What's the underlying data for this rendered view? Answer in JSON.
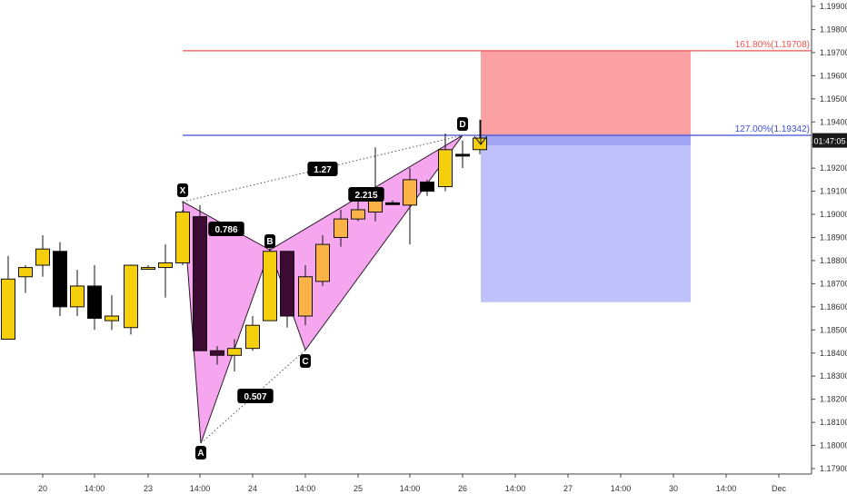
{
  "chart_data": {
    "type": "candlestick",
    "title": "",
    "xlabel": "",
    "ylabel": "",
    "ylim": [
      1.1787,
      1.1994
    ],
    "y_ticks": [
      "1.17900",
      "1.18000",
      "1.18100",
      "1.18200",
      "1.18300",
      "1.18400",
      "1.18500",
      "1.18600",
      "1.18700",
      "1.18800",
      "1.18900",
      "1.19000",
      "1.19100",
      "1.19200",
      "1.19300",
      "1.19400",
      "1.19500",
      "1.19600",
      "1.19700",
      "1.19800",
      "1.19900"
    ],
    "x_ticks": [
      "20",
      "14:00",
      "23",
      "14:00",
      "24",
      "14:00",
      "25",
      "14:00",
      "26",
      "14:00",
      "27",
      "14:00",
      "30",
      "14:00",
      "Dec"
    ],
    "price_label": "01:47:05",
    "price_value": 1.1932,
    "grid": false,
    "colors": {
      "bull": "#f5ce0c",
      "bear": "#000000",
      "bull_orange": "#fbb347",
      "bear_purple": "#3c0a32",
      "pattern_fill": "#f5a6ee",
      "fib_1618": "#ef5350",
      "fib_127": "#3f4fd8",
      "stop_zone": "#fba1a3",
      "target_zone": "#bfc1fb"
    },
    "candles": [
      {
        "o": 1.1846,
        "h": 1.1882,
        "l": 1.1846,
        "c": 1.1872
      },
      {
        "o": 1.1873,
        "h": 1.1878,
        "l": 1.1866,
        "c": 1.1877
      },
      {
        "o": 1.1878,
        "h": 1.1891,
        "l": 1.1873,
        "c": 1.1885
      },
      {
        "o": 1.1884,
        "h": 1.1888,
        "l": 1.1856,
        "c": 1.186
      },
      {
        "o": 1.186,
        "h": 1.1876,
        "l": 1.1856,
        "c": 1.1869
      },
      {
        "o": 1.1869,
        "h": 1.1878,
        "l": 1.185,
        "c": 1.1855
      },
      {
        "o": 1.1854,
        "h": 1.1865,
        "l": 1.185,
        "c": 1.1856
      },
      {
        "o": 1.1851,
        "h": 1.1878,
        "l": 1.1848,
        "c": 1.1878
      },
      {
        "o": 1.1877,
        "h": 1.1878,
        "l": 1.1876,
        "c": 1.1877
      },
      {
        "o": 1.1877,
        "h": 1.1887,
        "l": 1.1864,
        "c": 1.1879
      },
      {
        "o": 1.1879,
        "h": 1.1902,
        "l": 1.1878,
        "c": 1.1901
      },
      {
        "o": 1.1899,
        "h": 1.1904,
        "l": 1.1841,
        "c": 1.1841
      },
      {
        "o": 1.1841,
        "h": 1.1843,
        "l": 1.1835,
        "c": 1.1839
      },
      {
        "o": 1.1839,
        "h": 1.1846,
        "l": 1.1832,
        "c": 1.1842
      },
      {
        "o": 1.1842,
        "h": 1.1856,
        "l": 1.1841,
        "c": 1.1852
      },
      {
        "o": 1.1854,
        "h": 1.1886,
        "l": 1.1854,
        "c": 1.1884
      },
      {
        "o": 1.1884,
        "h": 1.1884,
        "l": 1.1851,
        "c": 1.1856
      },
      {
        "o": 1.1856,
        "h": 1.1878,
        "l": 1.1852,
        "c": 1.1873
      },
      {
        "o": 1.1871,
        "h": 1.1891,
        "l": 1.1869,
        "c": 1.1887
      },
      {
        "o": 1.189,
        "h": 1.1902,
        "l": 1.1886,
        "c": 1.1898
      },
      {
        "o": 1.1898,
        "h": 1.191,
        "l": 1.1897,
        "c": 1.1902
      },
      {
        "o": 1.1901,
        "h": 1.1929,
        "l": 1.1897,
        "c": 1.1907
      },
      {
        "o": 1.1905,
        "h": 1.1906,
        "l": 1.1904,
        "c": 1.1905
      },
      {
        "o": 1.1904,
        "h": 1.192,
        "l": 1.1887,
        "c": 1.1915
      },
      {
        "o": 1.191,
        "h": 1.1915,
        "l": 1.1908,
        "c": 1.1914
      },
      {
        "o": 1.1912,
        "h": 1.1935,
        "l": 1.191,
        "c": 1.1928
      },
      {
        "o": 1.1926,
        "h": 1.1932,
        "l": 1.192,
        "c": 1.1926
      },
      {
        "o": 1.1928,
        "h": 1.1941,
        "l": 1.1926,
        "c": 1.1933
      }
    ],
    "pattern": {
      "name": "",
      "points": [
        {
          "label": "X",
          "price": 1.19055
        },
        {
          "label": "A",
          "price": 1.1801
        },
        {
          "label": "B",
          "price": 1.18846
        },
        {
          "label": "C",
          "price": 1.18413
        },
        {
          "label": "D",
          "price": 1.19342
        }
      ],
      "ratios": [
        "0.786",
        "0.507",
        "1.27",
        "2.215"
      ]
    },
    "fib_levels": [
      {
        "label": "161.80%(1.19708)",
        "price": 1.19708
      },
      {
        "label": "127.00%(1.19342)",
        "price": 1.19342
      }
    ],
    "zones": {
      "stop": {
        "top": 1.19708,
        "bottom": 1.19342
      },
      "target": {
        "top": 1.19342,
        "bottom": 1.1862
      }
    }
  }
}
